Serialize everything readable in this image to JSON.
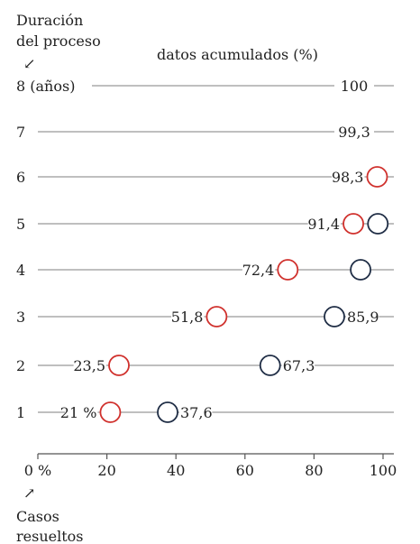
{
  "texts": {
    "y_title_line1": "Duración",
    "y_title_line2": "del proceso",
    "y_arrow": "↙",
    "top_label": "datos acumulados (%)",
    "x_arrow": "↗",
    "x_title_line1": "Casos",
    "x_title_line2": "resueltos"
  },
  "chart_data": {
    "type": "dot-plot",
    "y_categories": [
      "8 (años)",
      "7",
      "6",
      "5",
      "4",
      "3",
      "2",
      "1"
    ],
    "x_ticks": [
      "0 %",
      "20",
      "40",
      "60",
      "80",
      "100"
    ],
    "xlim": [
      0,
      100
    ],
    "top_values": [
      {
        "y": "8",
        "value_label": "100"
      },
      {
        "y": "7",
        "value_label": "99,3"
      }
    ],
    "series": [
      {
        "color": "#d0312d",
        "points": [
          {
            "y": "6",
            "x": 98.3,
            "label": "98,3"
          },
          {
            "y": "5",
            "x": 91.4,
            "label": "91,4"
          },
          {
            "y": "4",
            "x": 72.4,
            "label": "72,4"
          },
          {
            "y": "3",
            "x": 51.8,
            "label": "51,8"
          },
          {
            "y": "2",
            "x": 23.5,
            "label": "23,5"
          },
          {
            "y": "1",
            "x": 21.0,
            "label": "21 %"
          }
        ]
      },
      {
        "color": "#1f2d45",
        "points": [
          {
            "y": "5",
            "x": 98.5
          },
          {
            "y": "4",
            "x": 93.5
          },
          {
            "y": "3",
            "x": 85.9,
            "label": "85,9"
          },
          {
            "y": "2",
            "x": 67.3,
            "label": "67,3"
          },
          {
            "y": "1",
            "x": 37.6,
            "label": "37,6"
          }
        ]
      }
    ]
  }
}
